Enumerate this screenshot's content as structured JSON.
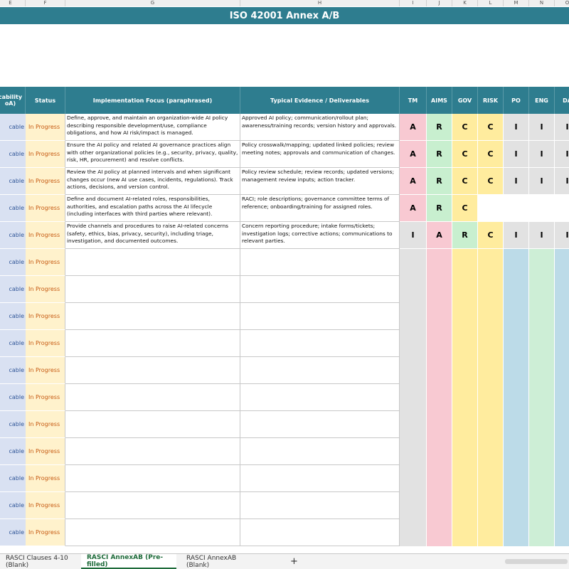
{
  "header": {
    "title": "ISO 42001 Annex A/B",
    "bar_color": "#2e7d8f"
  },
  "column_letters": [
    "E",
    "F",
    "G",
    "H",
    "I",
    "J",
    "K",
    "L",
    "M",
    "N",
    "O"
  ],
  "table": {
    "headers": [
      "cability\noA)",
      "Status",
      "Implementation Focus (paraphrased)",
      "Typical Evidence / Deliverables",
      "TM",
      "AIMS",
      "GOV",
      "RISK",
      "PO",
      "ENG",
      "DA"
    ],
    "raci_colors": {
      "A": "#f8c9d2",
      "R": "#c8efcf",
      "C": "#ffec9e",
      "I": "#e2e2e2"
    },
    "column_fills": [
      "#e2e2e2",
      "#f8c9d2",
      "#ffec9e",
      "#ffec9e",
      "#bcdbe8",
      "#cdeed6",
      "#bcdbe8"
    ],
    "rows": [
      {
        "applicability": "cable",
        "status": "In Progress",
        "focus": "Define, approve, and maintain an organization-wide AI policy describing responsible development/use, compliance obligations, and how AI risk/impact is managed.",
        "evidence": "Approved AI policy; communication/rollout plan; awareness/training records; version history and approvals.",
        "raci": [
          "A",
          "R",
          "C",
          "C",
          "I",
          "I",
          "I"
        ]
      },
      {
        "applicability": "cable",
        "status": "In Progress",
        "focus": "Ensure the AI policy and related AI governance practices align with other organizational policies (e.g., security, privacy, quality, risk, HR, procurement) and resolve conflicts.",
        "evidence": "Policy crosswalk/mapping; updated linked policies; review meeting notes; approvals and communication of changes.",
        "raci": [
          "A",
          "R",
          "C",
          "C",
          "I",
          "I",
          "I"
        ]
      },
      {
        "applicability": "cable",
        "status": "In Progress",
        "focus": "Review the AI policy at planned intervals and when significant changes occur (new AI use cases, incidents, regulations). Track actions, decisions, and version control.",
        "evidence": "Policy review schedule; review records; updated versions; management review inputs; action tracker.",
        "raci": [
          "A",
          "R",
          "C",
          "C",
          "I",
          "I",
          "I"
        ]
      },
      {
        "applicability": "cable",
        "status": "In Progress",
        "focus": "Define and document AI-related roles, responsibilities, authorities, and escalation paths across the AI lifecycle (including interfaces with third parties where relevant).",
        "evidence": "RACI; role descriptions; governance committee terms of reference; onboarding/training for assigned roles.",
        "raci": [
          "A",
          "R",
          "C",
          null,
          null,
          null,
          null
        ]
      },
      {
        "applicability": "cable",
        "status": "In Progress",
        "focus": "Provide channels and procedures to raise AI-related concerns (safety, ethics, bias, privacy, security), including triage, investigation, and documented outcomes.",
        "evidence": "Concern reporting procedure; intake forms/tickets; investigation logs; corrective actions; communications to relevant parties.",
        "raci": [
          "I",
          "A",
          "R",
          "C",
          "I",
          "I",
          "I"
        ]
      },
      {
        "applicability": "cable",
        "status": "In Progress"
      },
      {
        "applicability": "cable",
        "status": "In Progress"
      },
      {
        "applicability": "cable",
        "status": "In Progress"
      },
      {
        "applicability": "cable",
        "status": "In Progress"
      },
      {
        "applicability": "cable",
        "status": "In Progress"
      },
      {
        "applicability": "cable",
        "status": "In Progress"
      },
      {
        "applicability": "cable",
        "status": "In Progress"
      },
      {
        "applicability": "cable",
        "status": "In Progress"
      },
      {
        "applicability": "cable",
        "status": "In Progress"
      },
      {
        "applicability": "cable",
        "status": "In Progress"
      },
      {
        "applicability": "cable",
        "status": "In Progress"
      }
    ]
  },
  "tabs": {
    "items": [
      "RASCI Clauses 4-10 (Blank)",
      "RASCI AnnexAB (Pre-filled)",
      "RASCI AnnexAB (Blank)"
    ],
    "active": 1,
    "add": "+"
  }
}
